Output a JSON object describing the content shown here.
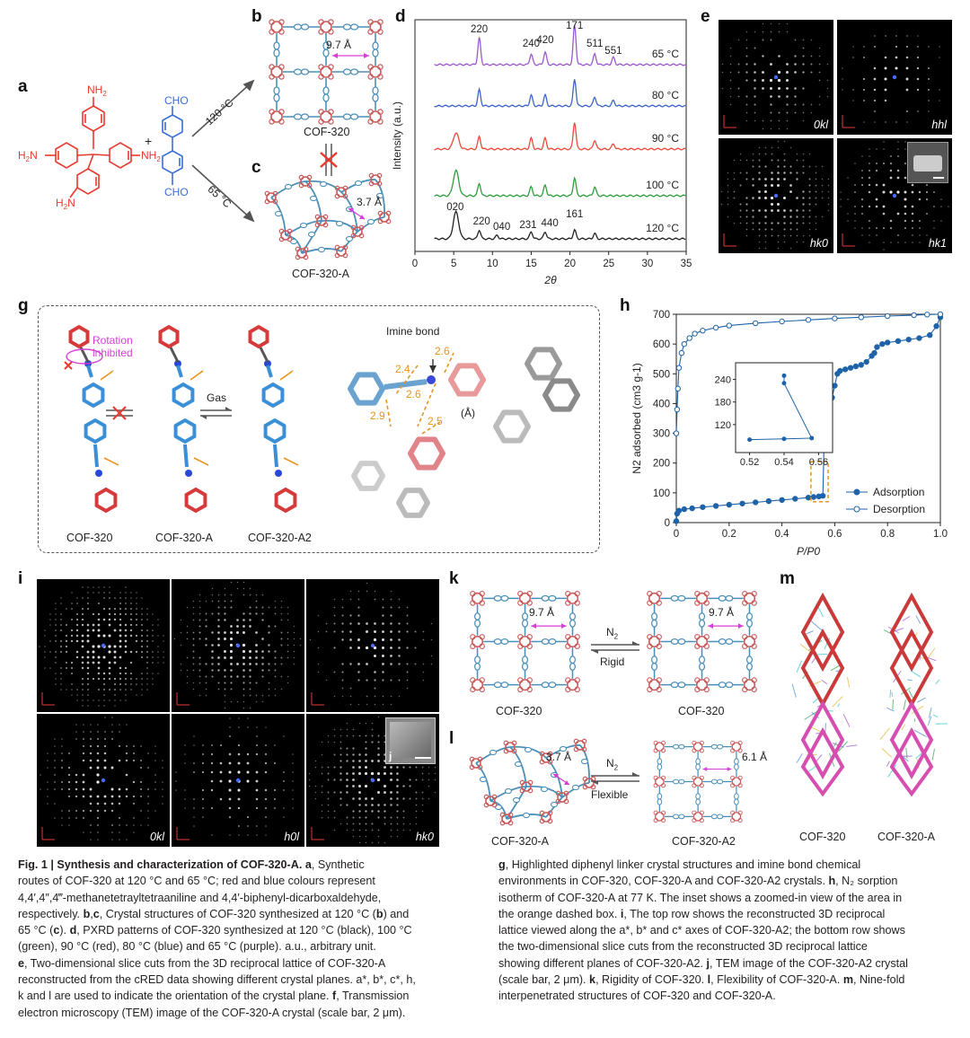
{
  "panels": {
    "a": "a",
    "b": "b",
    "c": "c",
    "d": "d",
    "e": "e",
    "g": "g",
    "h": "h",
    "i": "i",
    "k": "k",
    "l": "l",
    "m": "m"
  },
  "panel_a": {
    "nh2_top": "NH",
    "nh2_left": "H",
    "nh2_left2": "N",
    "nh2_right": "NH",
    "nh2_bottom": "H",
    "nh2_bottom2": "N",
    "sub2": "2",
    "plus": "+",
    "cho_top": "CHO",
    "cho_bottom": "CHO",
    "route_high": "120 °C",
    "route_low": "65 °C"
  },
  "panel_b": {
    "distance": "9.7 Å",
    "name": "COF-320"
  },
  "panel_c": {
    "distance": "3.7 Å",
    "name": "COF-320-A"
  },
  "panel_e": {
    "labels": [
      "0kl",
      "hhl",
      "hk0",
      "hk1"
    ]
  },
  "panel_g": {
    "rotation": "Rotation inhibited",
    "imine": "Imine bond",
    "gas": "Gas",
    "unit": "(Å)",
    "distances": [
      "2.4",
      "2.6",
      "2.6",
      "2.9",
      "2.5"
    ],
    "names": [
      "COF-320",
      "COF-320-A",
      "COF-320-A2"
    ]
  },
  "panel_i": {
    "labels": [
      "0kl",
      "h0l",
      "hk0"
    ],
    "inset": "j"
  },
  "panel_k": {
    "d1": "9.7 Å",
    "d2": "9.7 Å",
    "gas": "N",
    "gas_sub": "2",
    "mode": "Rigid",
    "left": "COF-320",
    "right": "COF-320"
  },
  "panel_l": {
    "d1": "3.7 Å",
    "d2": "6.1 Å",
    "gas": "N",
    "gas_sub": "2",
    "mode": "Flexible",
    "left": "COF-320-A",
    "right": "COF-320-A2"
  },
  "panel_m": {
    "left": "COF-320",
    "right": "COF-320-A"
  },
  "chart_data": [
    {
      "type": "line",
      "panel": "d",
      "xlabel": "2θ",
      "ylabel": "Intensity (a.u.)",
      "xlim": [
        0,
        35
      ],
      "xticks": [
        0,
        5,
        10,
        15,
        20,
        25,
        30,
        35
      ],
      "series": [
        {
          "name": "65 °C",
          "color": "#9b59d0",
          "peaks": [
            8.3,
            15.0,
            16.8,
            20.6,
            23.2,
            25.6
          ]
        },
        {
          "name": "80 °C",
          "color": "#3d63c9",
          "peaks": [
            8.3,
            15.0,
            16.8,
            20.6,
            23.2,
            25.6
          ]
        },
        {
          "name": "90 °C",
          "color": "#e84a3a",
          "peaks": [
            5.3,
            8.3,
            15.0,
            16.8,
            20.6,
            23.2,
            25.6
          ]
        },
        {
          "name": "100 °C",
          "color": "#2e9e3e",
          "peaks": [
            5.3,
            8.3,
            15.0,
            16.8,
            20.6,
            23.2
          ]
        },
        {
          "name": "120 °C",
          "color": "#222222",
          "peaks": [
            5.3,
            8.3,
            10.6,
            15.0,
            16.8,
            20.6,
            23.2
          ]
        }
      ],
      "annotations_top": [
        "220",
        "240",
        "420",
        "171",
        "511",
        "551"
      ],
      "annotations_bottom": [
        "020",
        "220",
        "040",
        "231",
        "440",
        "161"
      ]
    },
    {
      "type": "scatter",
      "panel": "h",
      "xlabel": "P/P0",
      "ylabel": "N2 adsorbed (cm3 g-1)",
      "xlim": [
        0,
        1.0
      ],
      "ylim": [
        0,
        700
      ],
      "xticks": [
        "0",
        "0.2",
        "0.4",
        "0.6",
        "0.8",
        "1.0"
      ],
      "yticks": [
        "0",
        "100",
        "200",
        "300",
        "400",
        "500",
        "600",
        "700"
      ],
      "legend": "bottom-right",
      "series": [
        {
          "name": "Adsorption",
          "marker": "filled",
          "x": [
            0.0,
            0.003,
            0.01,
            0.03,
            0.06,
            0.1,
            0.15,
            0.2,
            0.25,
            0.3,
            0.35,
            0.4,
            0.45,
            0.5,
            0.52,
            0.54,
            0.555,
            0.56,
            0.565,
            0.57,
            0.58,
            0.59,
            0.6,
            0.61,
            0.62,
            0.64,
            0.66,
            0.68,
            0.7,
            0.72,
            0.74,
            0.75,
            0.76,
            0.78,
            0.8,
            0.84,
            0.88,
            0.92,
            0.96,
            0.985,
            1.0
          ],
          "y": [
            5,
            30,
            40,
            45,
            48,
            52,
            56,
            60,
            64,
            68,
            72,
            76,
            80,
            84,
            86,
            88,
            90,
            280,
            300,
            340,
            380,
            420,
            460,
            500,
            510,
            515,
            520,
            525,
            530,
            540,
            560,
            570,
            590,
            600,
            605,
            610,
            615,
            620,
            630,
            660,
            690
          ]
        },
        {
          "name": "Desorption",
          "marker": "open",
          "x": [
            0.0,
            0.003,
            0.006,
            0.01,
            0.02,
            0.03,
            0.05,
            0.07,
            0.1,
            0.15,
            0.2,
            0.3,
            0.4,
            0.5,
            0.6,
            0.7,
            0.8,
            0.9,
            0.95,
            1.0
          ],
          "y": [
            300,
            380,
            450,
            520,
            570,
            600,
            620,
            635,
            645,
            655,
            662,
            670,
            676,
            681,
            686,
            690,
            694,
            697,
            699,
            700
          ]
        }
      ],
      "inset": {
        "xticks": [
          "0.52",
          "0.54",
          "0.56"
        ],
        "yticks": [
          "120",
          "180",
          "240"
        ],
        "points": [
          [
            0.52,
            80
          ],
          [
            0.54,
            82
          ],
          [
            0.556,
            84
          ],
          [
            0.54,
            230
          ],
          [
            0.54,
            250
          ]
        ]
      }
    }
  ],
  "caption_left": [
    {
      "bold": "Fig. 1 | Synthesis and characterization of COF-320-A. a",
      "text": ", Synthetic"
    },
    {
      "text": "routes of COF-320 at 120 °C and 65 °C; red and blue colours represent"
    },
    {
      "text": "4,4′,4″,4‴-methanetetrayltetraaniline and 4,4′-biphenyl-dicarboxaldehyde,"
    },
    {
      "text": "respectively. ",
      "bold2": "b",
      "text2": ",",
      "bold3": "c",
      "text3": ", Crystal structures of COF-320 synthesized at 120 °C (",
      "bold4": "b",
      "text4": ") and"
    },
    {
      "text": "65 °C (",
      "bold": "c",
      "text2": "). ",
      "bold2": "d",
      "text3": ", PXRD patterns of COF-320 synthesized at 120 °C (black), 100 °C"
    },
    {
      "text": "(green), 90 °C (red), 80 °C (blue) and 65 °C (purple). a.u., arbitrary unit."
    },
    {
      "bold": "e",
      "text": ", Two-dimensional slice cuts from the 3D reciprocal lattice of COF-320-A"
    },
    {
      "text": "reconstructed from the cRED data showing different crystal planes. a*, b*, c*, h,"
    },
    {
      "text": "k and l are used to indicate the orientation of the crystal plane. ",
      "bold": "f",
      "text2": ", Transmission"
    },
    {
      "text": "electron microscopy (TEM) image of the COF-320-A crystal (scale bar, 2 μm)."
    }
  ],
  "caption_right": [
    {
      "bold": "g",
      "text": ", Highlighted diphenyl linker crystal structures and imine bond chemical"
    },
    {
      "text": "environments in COF-320, COF-320-A and COF-320-A2 crystals. ",
      "bold": "h",
      "text2": ", N₂ sorption"
    },
    {
      "text": "isotherm of COF-320-A at 77 K. The inset shows a zoomed-in view of the area in"
    },
    {
      "text": "the orange dashed box. ",
      "bold": "i",
      "text2": ", The top row shows the reconstructed 3D reciprocal"
    },
    {
      "text": "lattice viewed along the a*, b* and c* axes of COF-320-A2; the bottom row shows"
    },
    {
      "text": "the two-dimensional slice cuts from the reconstructed 3D reciprocal lattice"
    },
    {
      "text": "showing different planes of COF-320-A2. ",
      "bold": "j",
      "text2": ", TEM image of the COF-320-A2 crystal"
    },
    {
      "text": "(scale bar, 2 μm). ",
      "bold": "k",
      "text2": ", Rigidity of COF-320. ",
      "bold2": "l",
      "text3": ", Flexibility of COF-320-A. ",
      "bold3": "m",
      "text4": ", Nine-fold"
    },
    {
      "text": "interpenetrated structures of COF-320 and COF-320-A."
    }
  ],
  "colors": {
    "red": "#e8392f",
    "blue": "#3a6fd6",
    "cof_red": "#c95b5b",
    "cof_blue": "#4a8fb8",
    "orange": "#e8941c",
    "magenta": "#d63fd6"
  }
}
